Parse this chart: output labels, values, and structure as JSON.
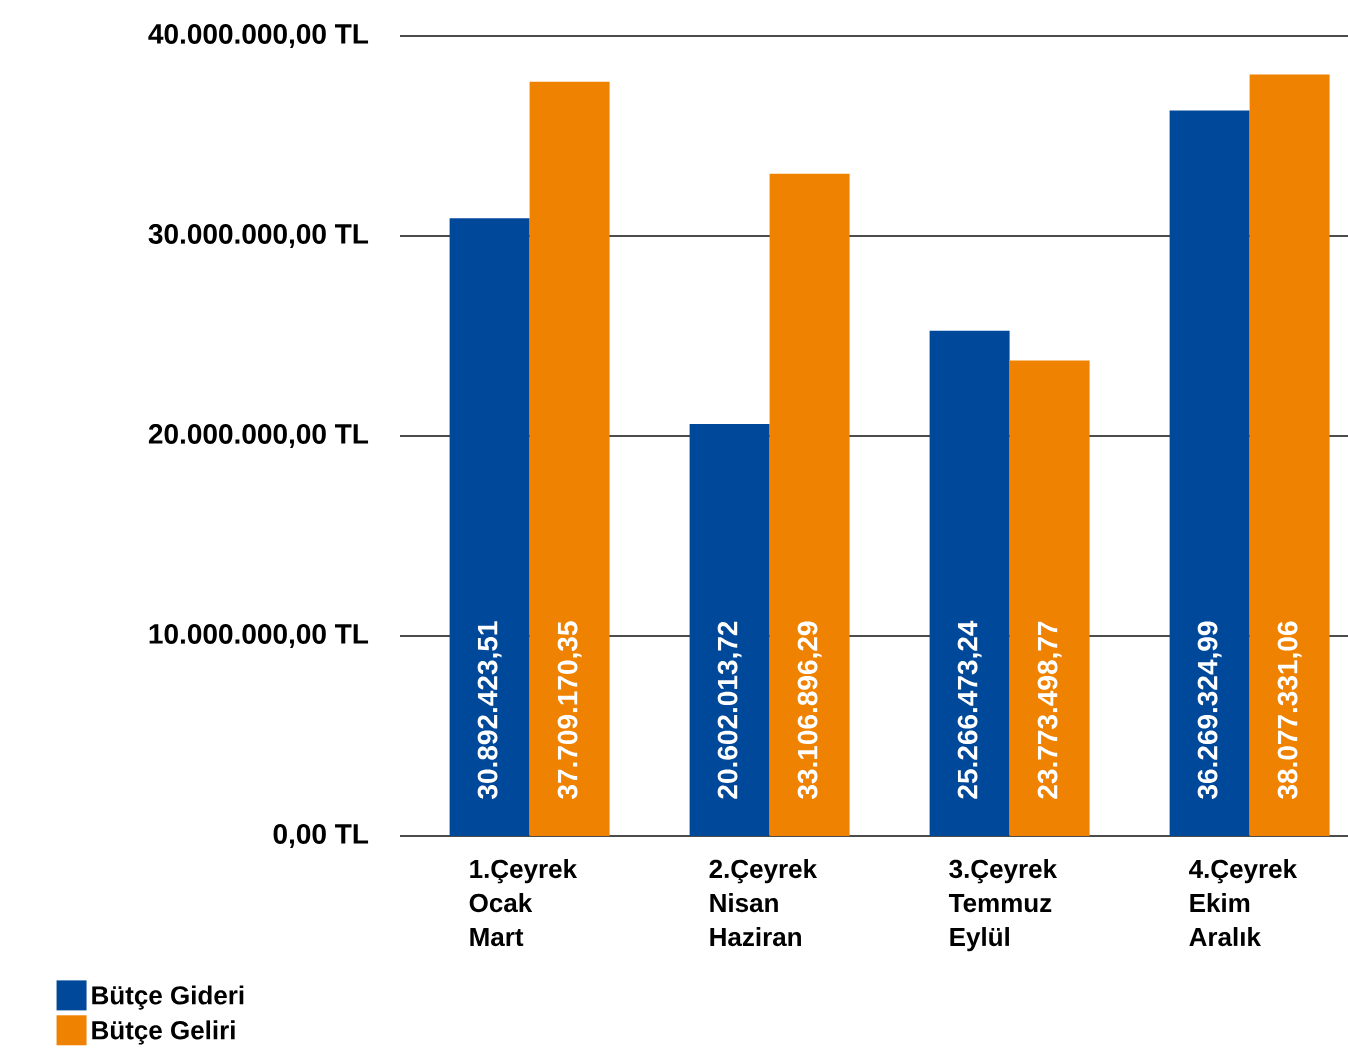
{
  "chart_data": {
    "type": "bar",
    "categories": [
      "1.Çeyrek Ocak Mart",
      "2.Çeyrek Nisan Haziran",
      "3.Çeyrek Temmuz Eylül",
      "4.Çeyrek Ekim Aralık"
    ],
    "series": [
      {
        "name": "Bütçe Gideri",
        "color": "#00489a",
        "values": [
          30892423.51,
          20602013.72,
          25266473.24,
          36269324.99
        ],
        "value_labels": [
          "30.892.423,51",
          "20.602.013,72",
          "25.266.473,24",
          "36.269.324,99"
        ]
      },
      {
        "name": "Bütçe Geliri",
        "color": "#ef8200",
        "values": [
          37709170.35,
          33106896.29,
          23773498.77,
          38077331.06
        ],
        "value_labels": [
          "37.709.170,35",
          "33.106.896,29",
          "23.773.498,77",
          "38.077.331,06"
        ]
      }
    ],
    "ylim": [
      0,
      40000000
    ],
    "yticks": [
      {
        "value": 0,
        "label": "0,00 TL"
      },
      {
        "value": 10000000,
        "label": "10.000.000,00 TL"
      },
      {
        "value": 20000000,
        "label": "20.000.000,00 TL"
      },
      {
        "value": 30000000,
        "label": "30.000.000,00 TL"
      },
      {
        "value": 40000000,
        "label": "40.000.000,00 TL"
      }
    ],
    "grid": "y",
    "legend": "bottom left"
  }
}
